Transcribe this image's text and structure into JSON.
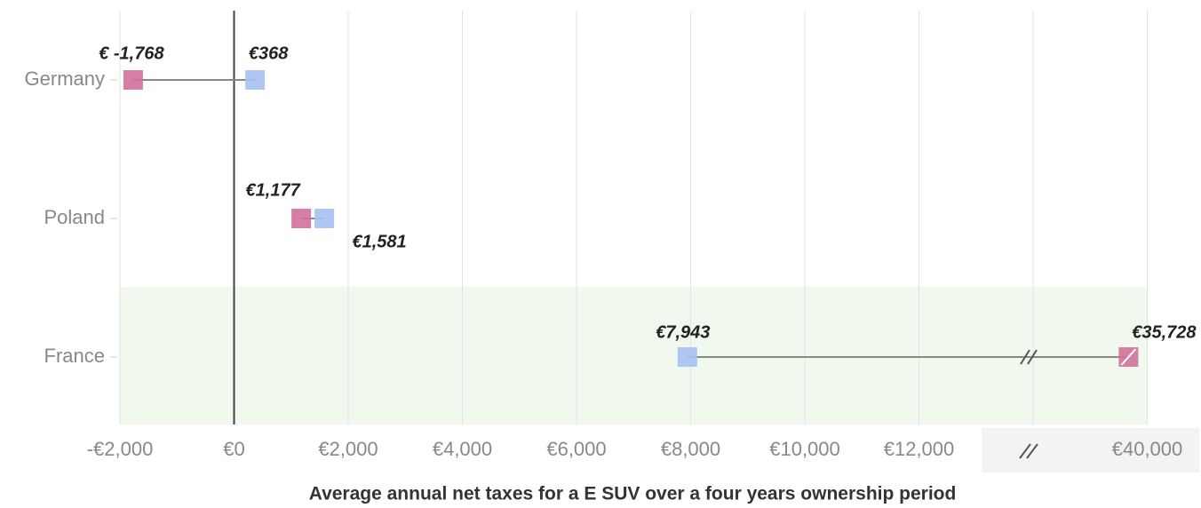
{
  "chart_data": {
    "type": "dumbbell",
    "x_label": "Average annual net taxes for a E SUV over a four years ownership period",
    "categories": [
      "Germany",
      "Poland",
      "France"
    ],
    "series": [
      {
        "color": "#d4709a",
        "values": [
          -1768,
          1177,
          35728
        ],
        "value_labels": [
          "€ -1,768",
          "€1,177",
          "€35,728"
        ]
      },
      {
        "color": "#a7c1f2",
        "values": [
          368,
          1581,
          7943
        ],
        "value_labels": [
          "€368",
          "€1,581",
          "€7,943"
        ]
      }
    ],
    "xlim": [
      -2000,
      40000
    ],
    "xticks": [
      {
        "value": -2000,
        "label": "-€2,000"
      },
      {
        "value": 0,
        "label": "€0"
      },
      {
        "value": 2000,
        "label": "€2,000"
      },
      {
        "value": 4000,
        "label": "€4,000"
      },
      {
        "value": 6000,
        "label": "€6,000"
      },
      {
        "value": 8000,
        "label": "€8,000"
      },
      {
        "value": 10000,
        "label": "€10,000"
      },
      {
        "value": 12000,
        "label": "€12,000"
      },
      {
        "value": 40000,
        "label": "€40,000"
      }
    ],
    "axis_break": true,
    "grid": true
  }
}
